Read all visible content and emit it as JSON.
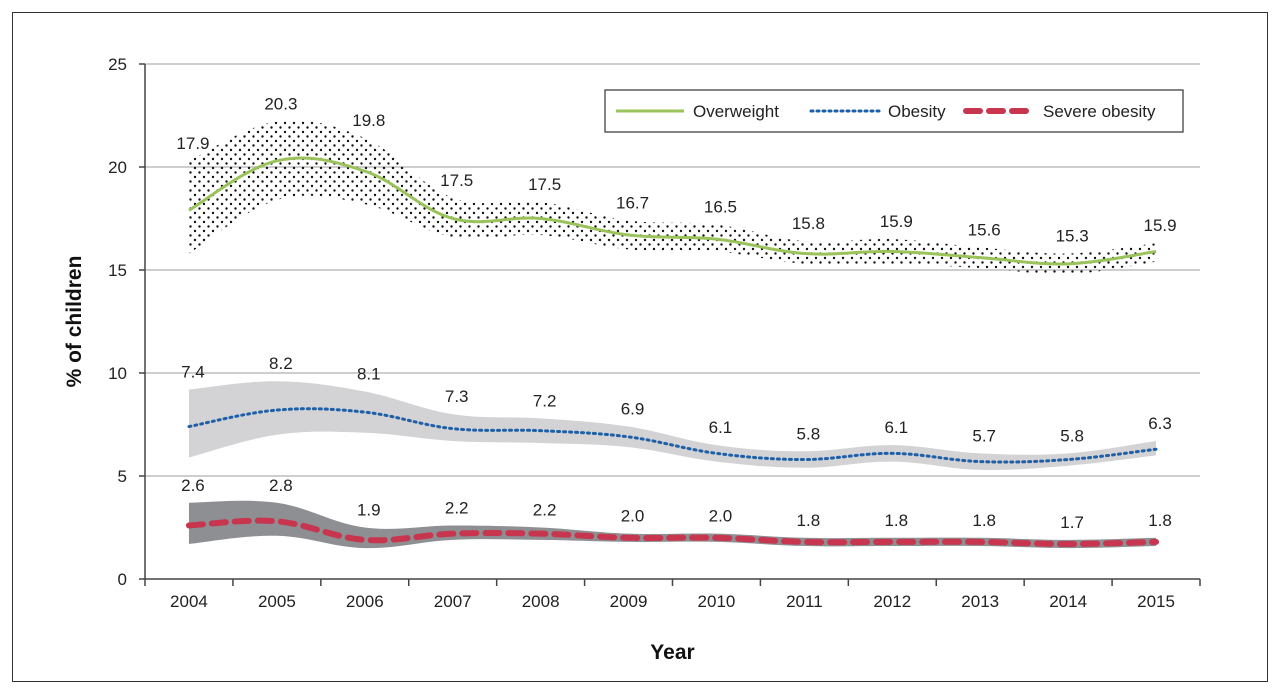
{
  "chart_data": {
    "type": "line",
    "title": "",
    "xlabel": "Year",
    "ylabel": "% of children",
    "ylim": [
      0,
      25
    ],
    "yticks": [
      "0",
      "5",
      "10",
      "15",
      "20",
      "25"
    ],
    "categories": [
      "2004",
      "2005",
      "2006",
      "2007",
      "2008",
      "2009",
      "2010",
      "2011",
      "2012",
      "2013",
      "2014",
      "2015"
    ],
    "grid": true,
    "legend_position": "top-right",
    "series": [
      {
        "name": "Overweight",
        "color": "#9bc35b",
        "line_style": "solid",
        "band_style": "dotted",
        "values": [
          17.9,
          20.3,
          19.8,
          17.5,
          17.5,
          16.7,
          16.5,
          15.8,
          15.9,
          15.6,
          15.3,
          15.9
        ],
        "labels": [
          "17.9",
          "20.3",
          "19.8",
          "17.5",
          "17.5",
          "16.7",
          "16.5",
          "15.8",
          "15.9",
          "15.6",
          "15.3",
          "15.9"
        ],
        "lower": [
          15.8,
          18.4,
          18.2,
          16.6,
          16.7,
          16.0,
          15.9,
          15.3,
          15.3,
          15.1,
          14.8,
          15.4
        ],
        "upper": [
          20.3,
          22.2,
          21.4,
          18.5,
          18.3,
          17.4,
          17.2,
          16.4,
          16.5,
          16.1,
          15.8,
          16.3
        ]
      },
      {
        "name": "Obesity",
        "color": "#1f5fa8",
        "line_style": "dotted",
        "band_style": "light-gray",
        "values": [
          7.4,
          8.2,
          8.1,
          7.3,
          7.2,
          6.9,
          6.1,
          5.8,
          6.1,
          5.7,
          5.8,
          6.3
        ],
        "labels": [
          "7.4",
          "8.2",
          "8.1",
          "7.3",
          "7.2",
          "6.9",
          "6.1",
          "5.8",
          "6.1",
          "5.7",
          "5.8",
          "6.3"
        ],
        "lower": [
          5.9,
          7.0,
          7.1,
          6.7,
          6.6,
          6.4,
          5.7,
          5.4,
          5.7,
          5.3,
          5.5,
          6.0
        ],
        "upper": [
          9.2,
          9.6,
          9.1,
          8.0,
          7.8,
          7.4,
          6.5,
          6.2,
          6.5,
          6.1,
          6.1,
          6.7
        ]
      },
      {
        "name": "Severe obesity",
        "color": "#c8354f",
        "line_style": "dashed",
        "band_style": "dark-gray",
        "values": [
          2.6,
          2.8,
          1.9,
          2.2,
          2.2,
          2.0,
          2.0,
          1.8,
          1.8,
          1.8,
          1.7,
          1.8
        ],
        "labels": [
          "2.6",
          "2.8",
          "1.9",
          "2.2",
          "2.2",
          "2.0",
          "2.0",
          "1.8",
          "1.8",
          "1.8",
          "1.7",
          "1.8"
        ],
        "lower": [
          1.7,
          2.1,
          1.5,
          1.9,
          1.9,
          1.8,
          1.8,
          1.6,
          1.6,
          1.6,
          1.5,
          1.6
        ],
        "upper": [
          3.7,
          3.7,
          2.5,
          2.6,
          2.5,
          2.2,
          2.2,
          2.0,
          2.0,
          2.0,
          1.9,
          2.0
        ]
      }
    ]
  }
}
